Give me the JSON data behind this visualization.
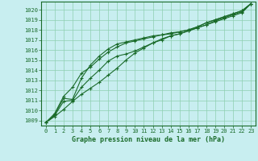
{
  "title": "Graphe pression niveau de la mer (hPa)",
  "background_color": "#c8eef0",
  "grid_color": "#8ecfb0",
  "line_color": "#1a6b2a",
  "xlim": [
    -0.5,
    23.5
  ],
  "ylim": [
    1008.5,
    1020.8
  ],
  "yticks": [
    1009,
    1010,
    1011,
    1012,
    1013,
    1014,
    1015,
    1016,
    1017,
    1018,
    1019,
    1020
  ],
  "xticks": [
    0,
    1,
    2,
    3,
    4,
    5,
    6,
    7,
    8,
    9,
    10,
    11,
    12,
    13,
    14,
    15,
    16,
    17,
    18,
    19,
    20,
    21,
    22,
    23
  ],
  "line1": [
    1008.8,
    1009.4,
    1010.1,
    1010.9,
    1011.6,
    1012.2,
    1012.8,
    1013.5,
    1014.2,
    1015.0,
    1015.7,
    1016.2,
    1016.7,
    1017.1,
    1017.4,
    1017.6,
    1017.9,
    1018.2,
    1018.5,
    1018.8,
    1019.1,
    1019.4,
    1019.7,
    1020.6
  ],
  "line2": [
    1008.8,
    1009.5,
    1010.9,
    1011.0,
    1012.3,
    1013.2,
    1014.0,
    1014.9,
    1015.4,
    1015.6,
    1015.9,
    1016.3,
    1016.7,
    1017.0,
    1017.4,
    1017.6,
    1017.9,
    1018.2,
    1018.5,
    1018.9,
    1019.2,
    1019.5,
    1019.8,
    1020.6
  ],
  "line3": [
    1008.8,
    1009.6,
    1011.2,
    1011.1,
    1013.2,
    1014.5,
    1015.4,
    1016.1,
    1016.6,
    1016.8,
    1017.0,
    1017.2,
    1017.4,
    1017.5,
    1017.7,
    1017.8,
    1018.0,
    1018.3,
    1018.7,
    1019.0,
    1019.3,
    1019.6,
    1019.9,
    1020.6
  ],
  "line4": [
    1008.8,
    1009.7,
    1011.4,
    1012.3,
    1013.7,
    1014.3,
    1015.1,
    1015.8,
    1016.3,
    1016.7,
    1016.9,
    1017.1,
    1017.3,
    1017.5,
    1017.6,
    1017.8,
    1018.0,
    1018.3,
    1018.7,
    1019.0,
    1019.3,
    1019.6,
    1019.9,
    1020.6
  ],
  "tick_fontsize": 5,
  "xlabel_fontsize": 6,
  "marker_size": 3,
  "line_width": 0.8
}
